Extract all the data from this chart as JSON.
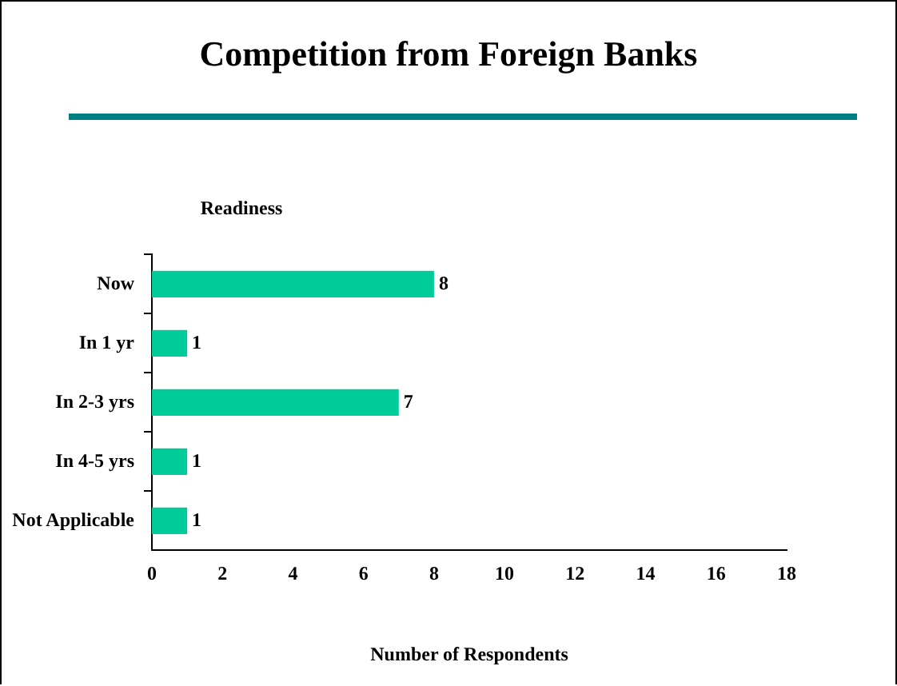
{
  "chart_data": {
    "type": "bar",
    "orientation": "horizontal",
    "title": "Competition from Foreign Banks",
    "ylabel": "Readiness",
    "xlabel": "Number of Respondents",
    "categories": [
      "Now",
      "In 1 yr",
      "In 2-3 yrs",
      "In 4-5 yrs",
      "Not Applicable"
    ],
    "values": [
      8,
      1,
      7,
      1,
      1
    ],
    "color": "#00cc99",
    "data_labels": true,
    "xlim": [
      0,
      18
    ],
    "xticks": [
      0,
      2,
      4,
      6,
      8,
      10,
      12,
      14,
      16,
      18
    ],
    "legend": false
  }
}
